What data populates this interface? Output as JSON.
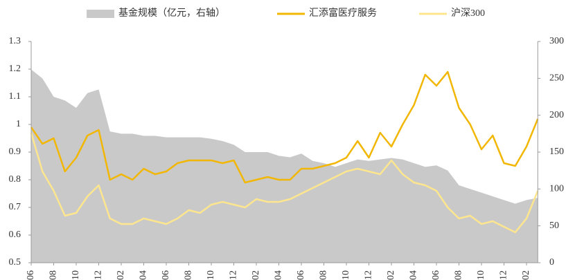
{
  "chart_data": {
    "type": "line",
    "categories": [
      "06",
      null,
      "08",
      null,
      "10",
      null,
      "12",
      null,
      "02",
      null,
      "04",
      null,
      "06",
      null,
      "08",
      null,
      "10",
      null,
      "12",
      null,
      "02",
      null,
      "04",
      null,
      "06",
      null,
      "08",
      null,
      "10",
      null,
      "12",
      null,
      "02",
      null,
      "04",
      null,
      "06",
      null,
      "08",
      null,
      "10",
      null,
      "12",
      null,
      "02",
      null
    ],
    "series": [
      {
        "name": "基金规模（亿元，右轴）",
        "color": "#c9c9c9",
        "kind": "area",
        "axis": "y2",
        "values": [
          262,
          250,
          225,
          220,
          210,
          230,
          235,
          178,
          175,
          175,
          172,
          172,
          170,
          170,
          170,
          170,
          168,
          165,
          160,
          150,
          150,
          150,
          145,
          143,
          148,
          138,
          135,
          130,
          135,
          140,
          138,
          140,
          142,
          140,
          135,
          130,
          132,
          125,
          105,
          100,
          95,
          90,
          85,
          80,
          85,
          88
        ]
      },
      {
        "name": "汇添富医疗服务",
        "color": "#f2b705",
        "kind": "line",
        "values": [
          0.99,
          0.93,
          0.95,
          0.83,
          0.88,
          0.96,
          0.98,
          0.8,
          0.82,
          0.8,
          0.84,
          0.82,
          0.83,
          0.86,
          0.87,
          0.87,
          0.87,
          0.86,
          0.87,
          0.79,
          0.8,
          0.81,
          0.8,
          0.8,
          0.84,
          0.84,
          0.85,
          0.86,
          0.88,
          0.94,
          0.88,
          0.97,
          0.92,
          1.0,
          1.07,
          1.18,
          1.14,
          1.19,
          1.06,
          1.0,
          0.91,
          0.96,
          0.86,
          0.85,
          0.92,
          1.02
        ]
      },
      {
        "name": "沪深300",
        "color": "#fde68e",
        "kind": "line",
        "values": [
          0.97,
          0.83,
          0.76,
          0.67,
          0.68,
          0.74,
          0.78,
          0.66,
          0.64,
          0.64,
          0.66,
          0.65,
          0.64,
          0.66,
          0.69,
          0.68,
          0.71,
          0.72,
          0.71,
          0.7,
          0.73,
          0.72,
          0.72,
          0.73,
          0.75,
          0.77,
          0.79,
          0.81,
          0.83,
          0.84,
          0.83,
          0.82,
          0.87,
          0.82,
          0.79,
          0.78,
          0.76,
          0.7,
          0.66,
          0.67,
          0.64,
          0.65,
          0.63,
          0.61,
          0.66,
          0.76
        ]
      }
    ],
    "ylim": [
      0.5,
      1.3
    ],
    "yticks": [
      0.5,
      0.6,
      0.7,
      0.8,
      0.9,
      1,
      1.1,
      1.2,
      1.3
    ],
    "y2lim": [
      0,
      300
    ],
    "y2ticks": [
      0,
      50,
      100,
      150,
      200,
      250,
      300
    ]
  }
}
